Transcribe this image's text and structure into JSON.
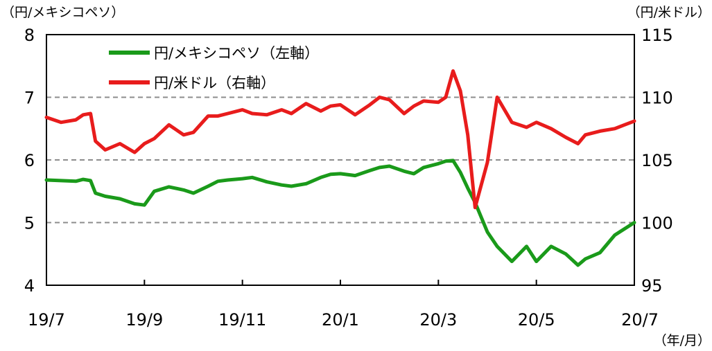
{
  "chart_data": {
    "type": "line",
    "left_axis_unit": "（円/メキシコペソ）",
    "right_axis_unit": "（円/米ドル）",
    "x_axis_unit": "（年/月）",
    "x_tick_labels": [
      "19/7",
      "19/9",
      "19/11",
      "20/1",
      "20/3",
      "20/5",
      "20/7"
    ],
    "left_ticks": [
      "4",
      "5",
      "6",
      "7",
      "8"
    ],
    "right_ticks": [
      "95",
      "100",
      "105",
      "110",
      "115"
    ],
    "ylim_left": [
      4,
      8
    ],
    "ylim_right": [
      95,
      115
    ],
    "grid": "dashed horizontal lines at 5, 6, 7 (left axis)",
    "legend_position": "top-left",
    "series": [
      {
        "name": "円/メキシコペソ（左軸）",
        "axis": "left",
        "color": "#1a9a1a",
        "x": [
          0,
          0.3,
          0.6,
          0.75,
          0.9,
          1.0,
          1.2,
          1.5,
          1.8,
          2.0,
          2.2,
          2.5,
          2.8,
          3.0,
          3.3,
          3.5,
          3.7,
          4.0,
          4.2,
          4.5,
          4.8,
          5.0,
          5.3,
          5.6,
          5.8,
          6.0,
          6.3,
          6.6,
          6.8,
          7.0,
          7.3,
          7.5,
          7.7,
          8.0,
          8.15,
          8.3,
          8.45,
          8.6,
          8.75,
          9.0,
          9.2,
          9.5,
          9.8,
          10.0,
          10.3,
          10.6,
          10.85,
          11.0,
          11.3,
          11.6,
          11.8,
          12.0
        ],
        "values": [
          5.68,
          5.67,
          5.66,
          5.69,
          5.67,
          5.47,
          5.42,
          5.38,
          5.3,
          5.28,
          5.5,
          5.57,
          5.52,
          5.47,
          5.58,
          5.66,
          5.68,
          5.7,
          5.72,
          5.65,
          5.6,
          5.58,
          5.62,
          5.72,
          5.77,
          5.78,
          5.75,
          5.83,
          5.88,
          5.9,
          5.82,
          5.78,
          5.88,
          5.94,
          5.98,
          5.99,
          5.8,
          5.55,
          5.32,
          4.85,
          4.62,
          4.38,
          4.62,
          4.38,
          4.62,
          4.5,
          4.32,
          4.42,
          4.52,
          4.8,
          4.9,
          5.0
        ]
      },
      {
        "name": "円/米ドル（右軸）",
        "axis": "right",
        "color": "#e81c1c",
        "x": [
          0,
          0.3,
          0.6,
          0.75,
          0.9,
          1.0,
          1.2,
          1.5,
          1.8,
          2.0,
          2.2,
          2.5,
          2.8,
          3.0,
          3.3,
          3.5,
          3.7,
          4.0,
          4.2,
          4.5,
          4.8,
          5.0,
          5.3,
          5.6,
          5.8,
          6.0,
          6.3,
          6.6,
          6.8,
          7.0,
          7.3,
          7.5,
          7.7,
          8.0,
          8.15,
          8.3,
          8.45,
          8.6,
          8.75,
          9.0,
          9.2,
          9.5,
          9.8,
          10.0,
          10.3,
          10.6,
          10.85,
          11.0,
          11.3,
          11.6,
          11.8,
          12.0
        ],
        "values": [
          108.4,
          108.0,
          108.2,
          108.6,
          108.7,
          106.5,
          105.8,
          106.3,
          105.6,
          106.3,
          106.7,
          107.8,
          107.0,
          107.2,
          108.5,
          108.5,
          108.7,
          109.0,
          108.7,
          108.6,
          109.0,
          108.7,
          109.5,
          108.9,
          109.3,
          109.4,
          108.6,
          109.4,
          110.0,
          109.8,
          108.7,
          109.3,
          109.7,
          109.6,
          110.0,
          112.1,
          110.5,
          107.0,
          101.2,
          104.8,
          110.0,
          108.0,
          107.6,
          108.0,
          107.5,
          106.8,
          106.3,
          107.0,
          107.3,
          107.5,
          107.8,
          108.1
        ]
      }
    ]
  }
}
